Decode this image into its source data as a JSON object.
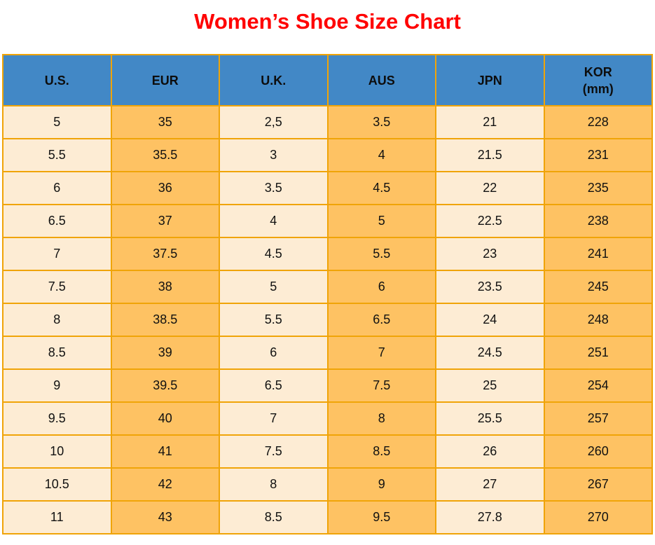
{
  "page": {
    "title": "Women’s Shoe Size Chart",
    "title_color": "#FF0000"
  },
  "table": {
    "columns": [
      {
        "key": "us",
        "label": "U.S."
      },
      {
        "key": "eur",
        "label": "EUR"
      },
      {
        "key": "uk",
        "label": "U.K."
      },
      {
        "key": "aus",
        "label": "AUS"
      },
      {
        "key": "jpn",
        "label": "JPN"
      },
      {
        "key": "kor",
        "label": "KOR",
        "label_line2": "(mm)"
      }
    ],
    "rows": [
      [
        "5",
        "35",
        "2,5",
        "3.5",
        "21",
        "228"
      ],
      [
        "5.5",
        "35.5",
        "3",
        "4",
        "21.5",
        "231"
      ],
      [
        "6",
        "36",
        "3.5",
        "4.5",
        "22",
        "235"
      ],
      [
        "6.5",
        "37",
        "4",
        "5",
        "22.5",
        "238"
      ],
      [
        "7",
        "37.5",
        "4.5",
        "5.5",
        "23",
        "241"
      ],
      [
        "7.5",
        "38",
        "5",
        "6",
        "23.5",
        "245"
      ],
      [
        "8",
        "38.5",
        "5.5",
        "6.5",
        "24",
        "248"
      ],
      [
        "8.5",
        "39",
        "6",
        "7",
        "24.5",
        "251"
      ],
      [
        "9",
        "39.5",
        "6.5",
        "7.5",
        "25",
        "254"
      ],
      [
        "9.5",
        "40",
        "7",
        "8",
        "25.5",
        "257"
      ],
      [
        "10",
        "41",
        "7.5",
        "8.5",
        "26",
        "260"
      ],
      [
        "10.5",
        "42",
        "8",
        "9",
        "27",
        "267"
      ],
      [
        "11",
        "43",
        "8.5",
        "9.5",
        "27.8",
        "270"
      ]
    ],
    "colors": {
      "header_bg": "#4288C6",
      "col_light": "#FDECD4",
      "col_orange": "#FEC263",
      "grid_border": "#F0A408",
      "header_text": "#0D0D0D",
      "cell_text": "#111111"
    }
  }
}
